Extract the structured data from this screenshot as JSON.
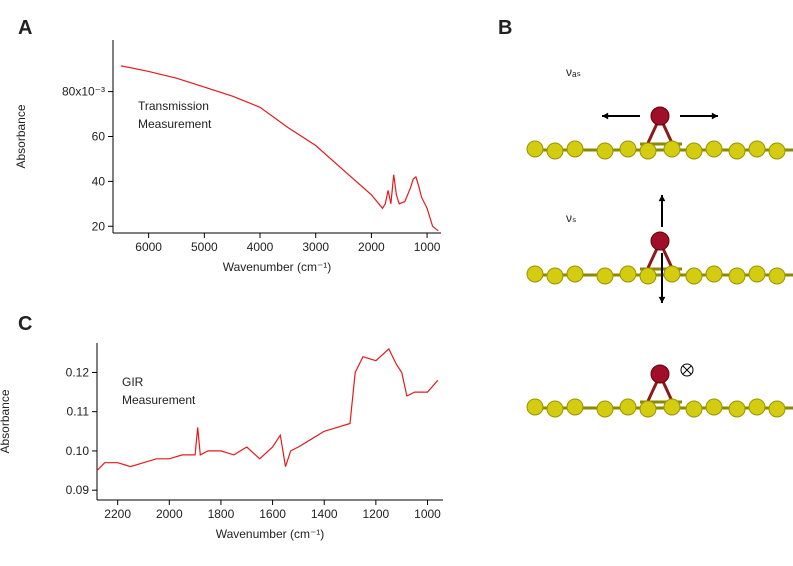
{
  "chart_data": [
    {
      "type": "line",
      "panel": "A",
      "xlabel": "Wavenumber (cm⁻¹)",
      "ylabel": "Absorbance",
      "annotation": [
        "Transmission",
        "Measurement"
      ],
      "xlim": [
        6640,
        750
      ],
      "ylim": [
        17,
        103
      ],
      "xticks": [
        6000,
        5000,
        4000,
        3000,
        2000,
        1000
      ],
      "yticks": [
        20,
        40,
        60,
        {
          "value": 80,
          "label": "80x10⁻³"
        }
      ],
      "series": [
        {
          "color": "#e41a1c",
          "x": [
            6500,
            6000,
            5500,
            5000,
            4500,
            4000,
            3500,
            3000,
            2500,
            2000,
            1800,
            1750,
            1700,
            1650,
            1600,
            1550,
            1500,
            1400,
            1300,
            1250,
            1200,
            1150,
            1100,
            1000,
            900,
            800
          ],
          "values": [
            91.5,
            89,
            86,
            82,
            78,
            73,
            64,
            56,
            45,
            34,
            28,
            30,
            36,
            30,
            43,
            34,
            30,
            31,
            37,
            41,
            42,
            38,
            33,
            28,
            20,
            18
          ]
        }
      ]
    },
    {
      "type": "line",
      "panel": "C",
      "xlabel": "Wavenumber (cm⁻¹)",
      "ylabel": "Absorbance",
      "annotation": [
        "GIR",
        "Measurement"
      ],
      "xlim": [
        2280,
        940
      ],
      "ylim": [
        0.0875,
        0.1275
      ],
      "xticks": [
        2200,
        2000,
        1800,
        1600,
        1400,
        1200,
        1000
      ],
      "yticks": [
        0.09,
        {
          "value": 0.1,
          "label": "0.10"
        },
        0.11,
        0.12
      ],
      "series": [
        {
          "color": "#e41a1c",
          "x": [
            2280,
            2250,
            2200,
            2150,
            2100,
            2050,
            2000,
            1950,
            1900,
            1890,
            1880,
            1850,
            1800,
            1750,
            1700,
            1650,
            1600,
            1570,
            1550,
            1530,
            1500,
            1450,
            1400,
            1350,
            1300,
            1280,
            1250,
            1200,
            1150,
            1120,
            1100,
            1080,
            1050,
            1000,
            960
          ],
          "values": [
            0.095,
            0.097,
            0.097,
            0.096,
            0.097,
            0.098,
            0.098,
            0.099,
            0.099,
            0.106,
            0.099,
            0.1,
            0.1,
            0.099,
            0.101,
            0.098,
            0.101,
            0.104,
            0.096,
            0.1,
            0.101,
            0.103,
            0.105,
            0.106,
            0.107,
            0.12,
            0.124,
            0.123,
            0.126,
            0.122,
            0.12,
            0.114,
            0.115,
            0.115,
            0.118
          ]
        }
      ]
    }
  ],
  "diagram": {
    "panel": "B",
    "modes": [
      "νₐₛ",
      "νₛ"
    ]
  }
}
